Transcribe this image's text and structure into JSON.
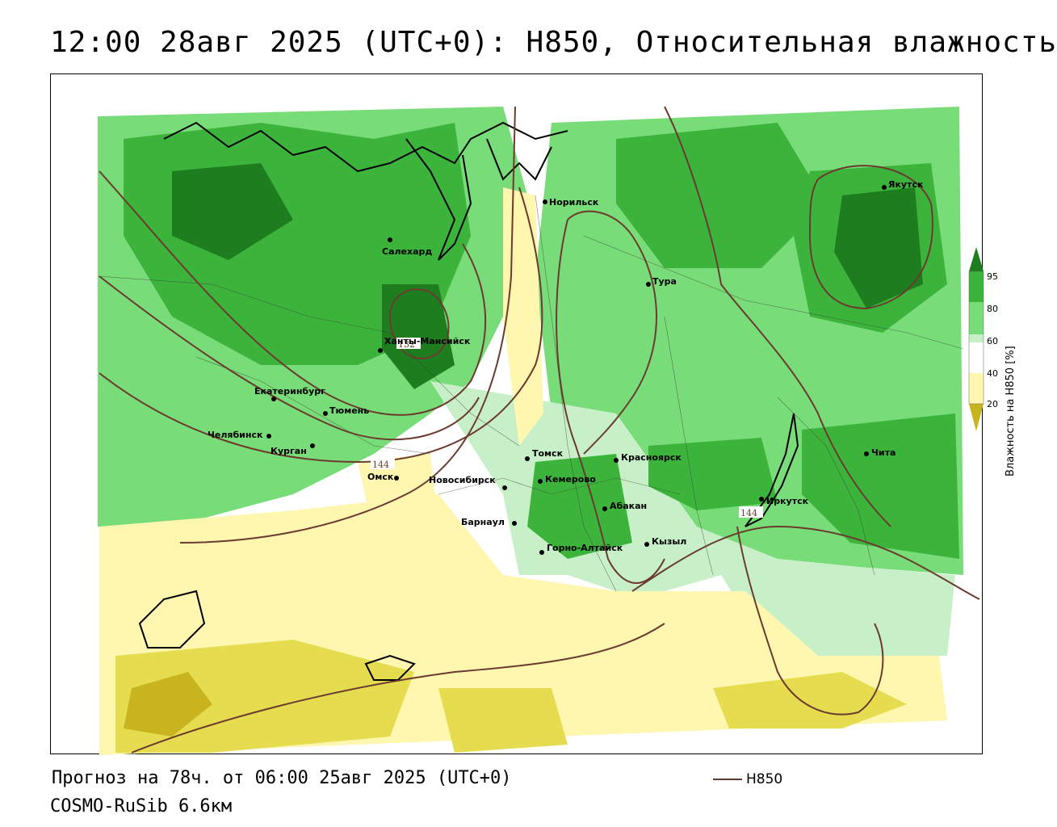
{
  "title": "12:00 28авг 2025 (UTC+0): H850, Относительная влажность",
  "footer": {
    "forecast": "Прогноз на 78ч. от 06:00 25авг 2025 (UTC+0)",
    "model": "COSMO-RuSib 6.6км"
  },
  "legend": {
    "line_label": "H850",
    "line_color": "#5a3a32"
  },
  "colorbar": {
    "title": "Влажность на H850 [%]",
    "ticks": [
      "95",
      "80",
      "60",
      "40",
      "20"
    ],
    "colors": [
      "#1e7d1e",
      "#3cb43c",
      "#78dc78",
      "#c8f0c8",
      "#ffffff",
      "#fff6b0",
      "#e6dc50",
      "#c8b41e"
    ]
  },
  "cities": [
    {
      "name": "Норильск"
    },
    {
      "name": "Якутск"
    },
    {
      "name": "Салехард"
    },
    {
      "name": "Тура"
    },
    {
      "name": "Ханты-Мансийск"
    },
    {
      "name": "Екатеринбург"
    },
    {
      "name": "Тюмень"
    },
    {
      "name": "Челябинск"
    },
    {
      "name": "Курган"
    },
    {
      "name": "Омск"
    },
    {
      "name": "Новосибирск"
    },
    {
      "name": "Томск"
    },
    {
      "name": "Кемерово"
    },
    {
      "name": "Красноярск"
    },
    {
      "name": "Барнаул"
    },
    {
      "name": "Абакан"
    },
    {
      "name": "Горно-Алтайск"
    },
    {
      "name": "Кызыл"
    },
    {
      "name": "Иркутск"
    },
    {
      "name": "Чита"
    }
  ],
  "contour_labels": [
    "132",
    "144",
    "144"
  ]
}
